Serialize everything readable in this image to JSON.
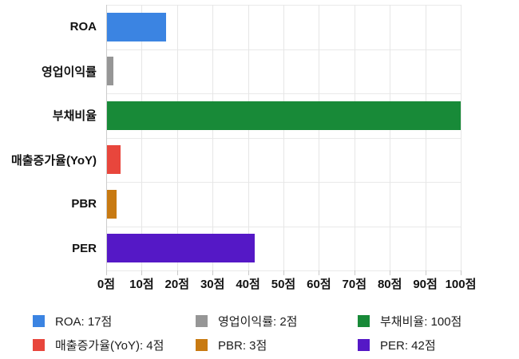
{
  "chart_data": {
    "type": "bar",
    "orientation": "horizontal",
    "title": "",
    "xlabel": "",
    "ylabel": "",
    "unit": "점",
    "categories": [
      "ROA",
      "영업이익률",
      "부채비율",
      "매출증가율(YoY)",
      "PBR",
      "PER"
    ],
    "values": [
      17,
      2,
      100,
      4,
      3,
      42
    ],
    "colors": [
      "#3b84e2",
      "#969696",
      "#188a38",
      "#e8463c",
      "#c87a12",
      "#5518c6"
    ],
    "xlim": [
      0,
      100
    ],
    "x_ticks": [
      "0점",
      "10점",
      "20점",
      "30점",
      "40점",
      "50점",
      "60점",
      "70점",
      "80점",
      "90점",
      "100점"
    ],
    "x_tick_values": [
      0,
      10,
      20,
      30,
      40,
      50,
      60,
      70,
      80,
      90,
      100
    ],
    "grid": true,
    "legend_position": "bottom",
    "legend": [
      {
        "label": "ROA: 17점",
        "color": "#3b84e2"
      },
      {
        "label": "영업이익률: 2점",
        "color": "#969696"
      },
      {
        "label": "부채비율: 100점",
        "color": "#188a38"
      },
      {
        "label": "매출증가율(YoY): 4점",
        "color": "#e8463c"
      },
      {
        "label": "PBR: 3점",
        "color": "#c87a12"
      },
      {
        "label": "PER: 42점",
        "color": "#5518c6"
      }
    ]
  },
  "style": {
    "gridline_color": "#e6e6e6",
    "axis_color": "#cccccc",
    "label_color": "#111111",
    "legend_text_color": "#1c1c1c",
    "background": "#ffffff"
  }
}
